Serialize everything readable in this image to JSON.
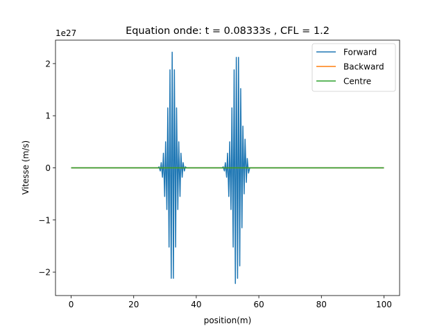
{
  "chart_data": {
    "type": "line",
    "title": "Equation onde: t = 0.08333s , CFL = 1.2",
    "xlabel": "position(m)",
    "ylabel": "Vitesse (m/s)",
    "y_offset_label": "1e27",
    "xlim": [
      -5,
      105
    ],
    "ylim": [
      -2.45,
      2.45
    ],
    "xticks": [
      0,
      20,
      40,
      60,
      80,
      100
    ],
    "xtick_labels": [
      "0",
      "20",
      "40",
      "60",
      "80",
      "100"
    ],
    "yticks": [
      -2,
      -1,
      0,
      1,
      2
    ],
    "ytick_labels": [
      "−2",
      "−1",
      "0",
      "1",
      "2"
    ],
    "grid": false,
    "legend_position": "top-right",
    "series": [
      {
        "name": "Forward",
        "color": "#1f77b4",
        "x": [
          0,
          27.8,
          28.1,
          28.5,
          28.8,
          29.2,
          29.5,
          29.9,
          30.2,
          30.6,
          30.9,
          31.3,
          31.6,
          32.0,
          32.3,
          32.7,
          33.0,
          33.4,
          33.7,
          34.1,
          34.4,
          34.8,
          35.1,
          35.5,
          35.8,
          36.2,
          36.5,
          36.9,
          37.3,
          48.3,
          48.6,
          49.0,
          49.3,
          49.7,
          50.0,
          50.4,
          50.7,
          51.1,
          51.4,
          51.8,
          52.1,
          52.5,
          52.8,
          53.2,
          53.5,
          53.9,
          54.2,
          54.6,
          54.9,
          55.3,
          55.6,
          56.0,
          56.3,
          56.7,
          57.1,
          100
        ],
        "values": [
          0,
          0,
          0.02,
          -0.06,
          0.1,
          -0.18,
          0.28,
          -0.55,
          0.5,
          -0.8,
          1.15,
          -1.52,
          1.88,
          -2.12,
          2.22,
          -2.12,
          1.88,
          -1.52,
          1.15,
          -0.8,
          0.5,
          -0.55,
          0.28,
          -0.18,
          0.1,
          -0.06,
          0.02,
          0,
          0,
          0,
          0.02,
          -0.06,
          0.1,
          -0.18,
          0.28,
          -0.55,
          0.5,
          -0.8,
          1.15,
          -1.52,
          1.88,
          -2.22,
          2.12,
          -2.12,
          2.12,
          -1.88,
          1.52,
          -1.15,
          0.8,
          -0.5,
          0.55,
          -0.28,
          0.18,
          -0.1,
          0,
          0
        ]
      },
      {
        "name": "Backward",
        "color": "#ff7f0e",
        "x": [
          0,
          100
        ],
        "values": [
          0,
          0
        ]
      },
      {
        "name": "Centre",
        "color": "#2ca02c",
        "x": [
          0,
          100
        ],
        "values": [
          0,
          0
        ]
      }
    ]
  }
}
